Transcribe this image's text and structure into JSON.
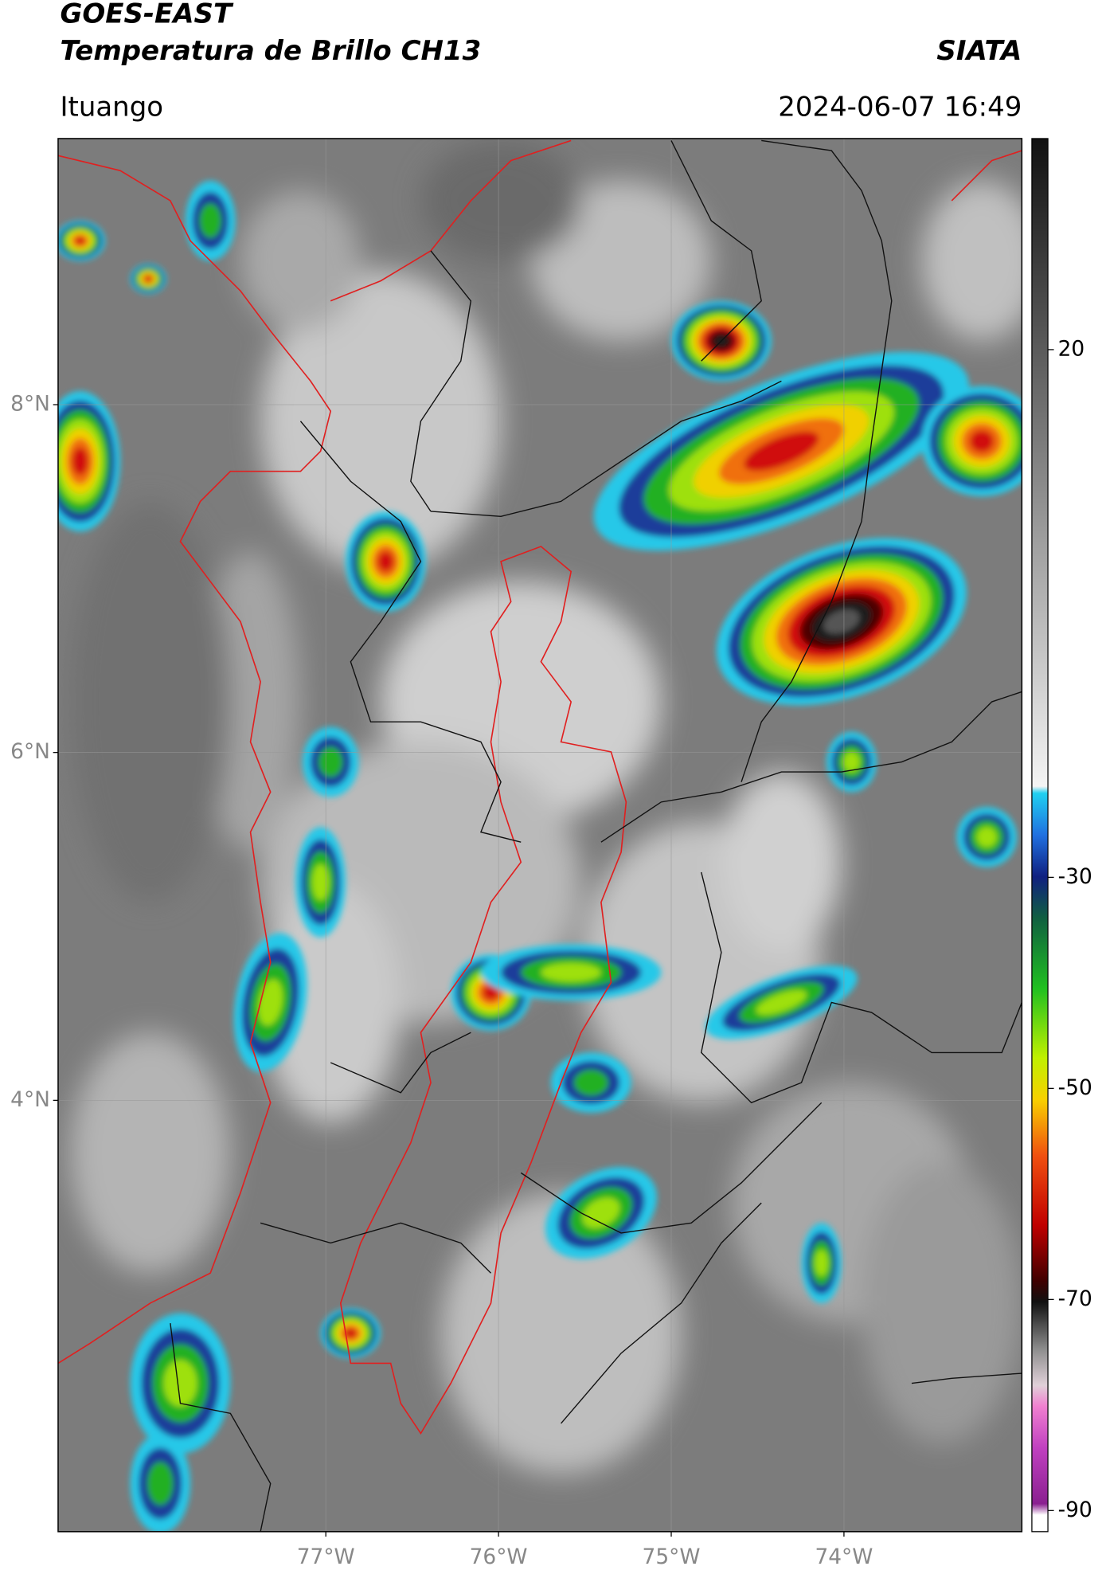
{
  "header": {
    "title": "GOES-EAST",
    "subtitle": "Temperatura de Brillo CH13",
    "source": "SIATA",
    "location": "Ituango",
    "datetime": "2024-06-07 16:49"
  },
  "map": {
    "xlim": [
      -78.55,
      -72.97
    ],
    "ylim": [
      1.52,
      9.53
    ],
    "xticks": [
      {
        "value": -77,
        "label": "77°W"
      },
      {
        "value": -76,
        "label": "76°W"
      },
      {
        "value": -75,
        "label": "75°W"
      },
      {
        "value": -74,
        "label": "74°W"
      }
    ],
    "yticks": [
      {
        "value": 8,
        "label": "8°N"
      },
      {
        "value": 6,
        "label": "6°N"
      },
      {
        "value": 4,
        "label": "4°N"
      }
    ],
    "grid": true
  },
  "colorbar": {
    "lim": [
      -92,
      40
    ],
    "ticks": [
      20,
      -30,
      -50,
      -70,
      -90
    ]
  }
}
